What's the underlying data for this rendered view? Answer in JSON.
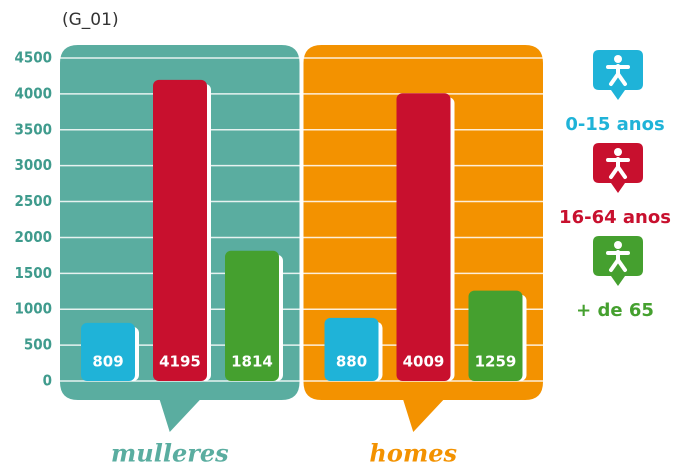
{
  "chart_data": {
    "type": "bar",
    "title": "(G_01)",
    "categories": [
      "mulleres",
      "homes"
    ],
    "group_colors": [
      "#5aada0",
      "#f39200"
    ],
    "series": [
      {
        "name": "0-15 anos",
        "color": "#1fb3d8",
        "values": [
          809,
          880
        ]
      },
      {
        "name": "16-64 anos",
        "color": "#c8102e",
        "values": [
          4195,
          4009
        ]
      },
      {
        "name": "+ de 65",
        "color": "#45a02f",
        "values": [
          1814,
          1259
        ]
      }
    ],
    "ylim": [
      0,
      4500
    ],
    "yticks": [
      0,
      500,
      1000,
      1500,
      2000,
      2500,
      3000,
      3500,
      4000,
      4500
    ],
    "grid": true,
    "legend": "right"
  }
}
